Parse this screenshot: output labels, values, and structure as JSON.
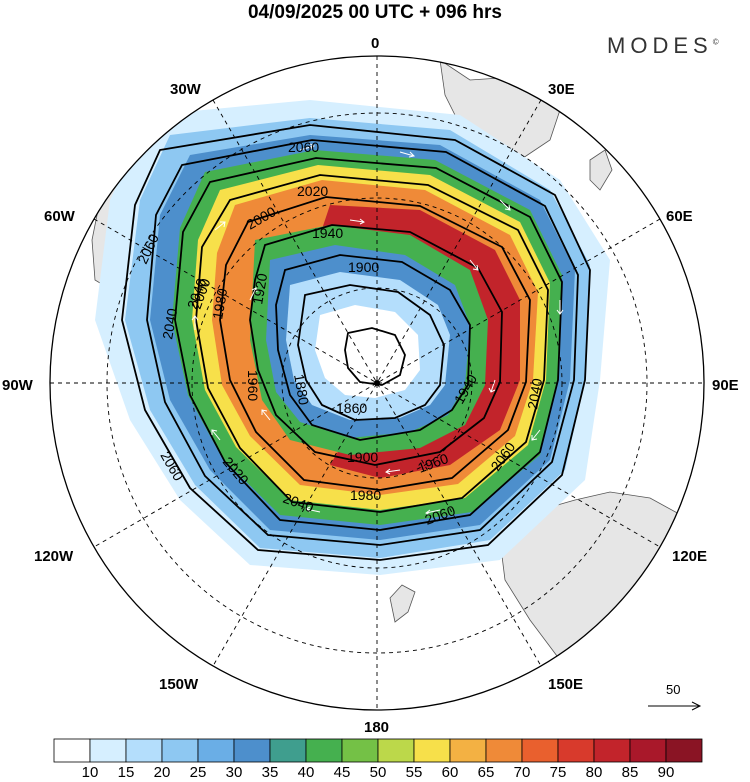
{
  "title": "04/09/2025  00 UTC  + 096 hrs",
  "brand": "MODES",
  "brand_mark": "©",
  "projection": "polar-stereographic-south",
  "longitude_labels": {
    "top": "0",
    "bottom": "180",
    "left": "90W",
    "right": "90E",
    "upper_left_1": "30W",
    "upper_left_2": "60W",
    "upper_right_1": "30E",
    "upper_right_2": "60E",
    "lower_left_1": "120W",
    "lower_left_2": "150W",
    "lower_right_1": "120E",
    "lower_right_2": "150E"
  },
  "contour_labels": [
    "2060",
    "2040",
    "2020",
    "2000",
    "1940",
    "1900",
    "1920",
    "1960",
    "1980",
    "1880",
    "1860",
    "1900",
    "1940",
    "1960",
    "1980",
    "2000",
    "2020",
    "2040",
    "2060",
    "2060",
    "2040",
    "2060",
    "2040",
    "2060"
  ],
  "reference_vector": "50",
  "colorbar": {
    "ticks": [
      "10",
      "15",
      "20",
      "25",
      "30",
      "35",
      "40",
      "45",
      "50",
      "55",
      "60",
      "65",
      "70",
      "75",
      "80",
      "85",
      "90"
    ],
    "colors": [
      "#ffffff",
      "#d6efff",
      "#b4defc",
      "#8ec8f2",
      "#6aaee6",
      "#4d8fcc",
      "#3f9e8e",
      "#45b04f",
      "#74c146",
      "#bcd84a",
      "#f7e04a",
      "#f3b143",
      "#ef8a38",
      "#e9602e",
      "#d83a2c",
      "#c2242b",
      "#a9182a",
      "#8a1424"
    ]
  }
}
